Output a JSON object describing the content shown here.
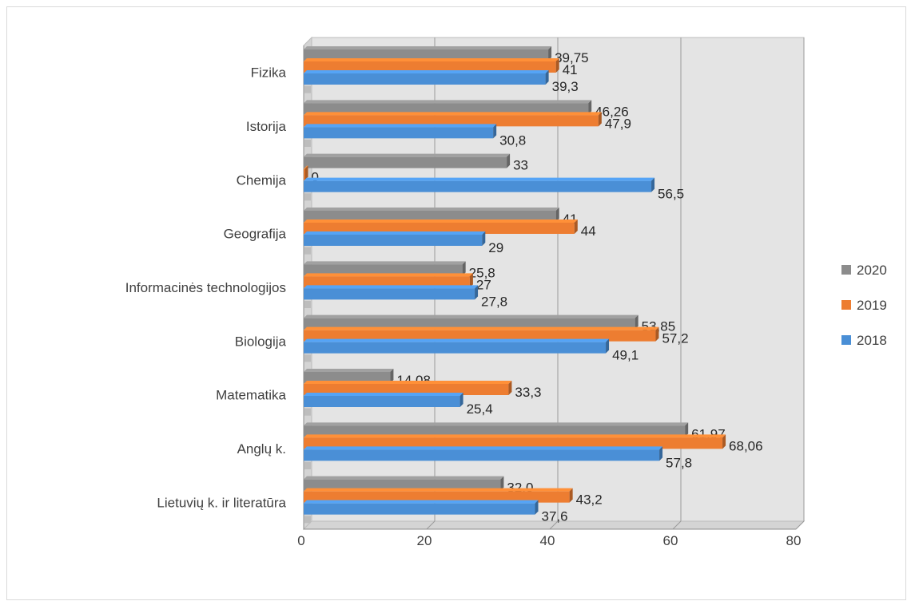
{
  "chart_data": {
    "type": "bar",
    "orientation": "horizontal",
    "style": "3d-clustered",
    "categories": [
      "Fizika",
      "Istorija",
      "Chemija",
      "Geografija",
      "Informacinės technologijos",
      "Biologija",
      "Matematika",
      "Anglų k.",
      "Lietuvių k. ir literatūra"
    ],
    "series": [
      {
        "name": "2020",
        "color": "#8c8c8c",
        "values": [
          39.75,
          46.26,
          33,
          41,
          25.8,
          53.85,
          14.08,
          61.97,
          32.0
        ],
        "labels": [
          "39,75",
          "46,26",
          "33",
          "41",
          "25,8",
          "53,85",
          "14,08",
          "61,97",
          "32,0"
        ]
      },
      {
        "name": "2019",
        "color": "#ed7d31",
        "values": [
          41,
          47.9,
          0,
          44,
          27,
          57.2,
          33.3,
          68.06,
          43.2
        ],
        "labels": [
          "41",
          "47,9",
          "0",
          "44",
          "27",
          "57,2",
          "33,3",
          "68,06",
          "43,2"
        ]
      },
      {
        "name": "2018",
        "color": "#4a8fd6",
        "values": [
          39.3,
          30.8,
          56.5,
          29,
          27.8,
          49.1,
          25.4,
          57.8,
          37.6
        ],
        "labels": [
          "39,3",
          "30,8",
          "56,5",
          "29",
          "27,8",
          "49,1",
          "25,4",
          "57,8",
          "37,6"
        ]
      }
    ],
    "xlim": [
      0,
      80
    ],
    "x_ticks": [
      "0",
      "20",
      "40",
      "60",
      "80"
    ],
    "x_tick_values": [
      0,
      20,
      40,
      60,
      80
    ],
    "grid": true,
    "legend_position": "right",
    "legend_order": [
      "2020",
      "2019",
      "2018"
    ],
    "title": "",
    "xlabel": "",
    "ylabel": ""
  }
}
